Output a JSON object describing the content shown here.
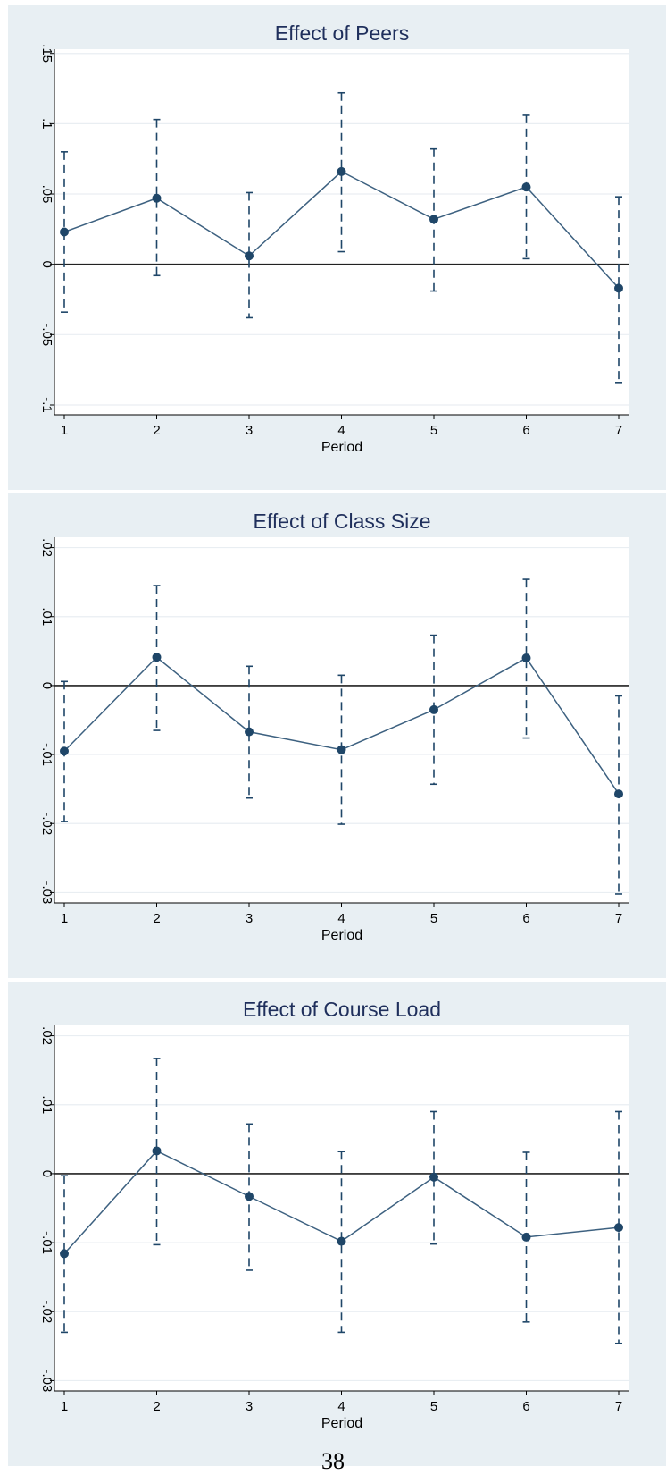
{
  "page_number": "38",
  "chart_data": [
    {
      "type": "line",
      "title": "Effect of Peers",
      "xlabel": "Period",
      "ylabel": "",
      "x": [
        1,
        2,
        3,
        4,
        5,
        6,
        7
      ],
      "x_tick_labels": [
        "1",
        "2",
        "3",
        "4",
        "5",
        "6",
        "7"
      ],
      "y_ticks": [
        0.15,
        0.1,
        0.05,
        0,
        -0.05,
        -0.1
      ],
      "y_tick_labels": [
        ".15",
        ".1",
        ".05",
        "0",
        "-.05",
        "-.1"
      ],
      "ylim": [
        -0.107,
        0.153
      ],
      "reference_line": 0,
      "grid": true,
      "series": [
        {
          "values": [
            0.023,
            0.047,
            0.006,
            0.066,
            0.032,
            0.055,
            -0.017
          ],
          "ci_upper": [
            0.08,
            0.103,
            0.051,
            0.122,
            0.082,
            0.106,
            0.048
          ],
          "ci_lower": [
            -0.034,
            -0.008,
            -0.038,
            0.009,
            -0.019,
            0.004,
            -0.084
          ]
        }
      ],
      "colors": {
        "line": "#3d6180",
        "marker": "#1f4668",
        "background": "#e8eff3",
        "plot": "#ffffff",
        "title": "#1f2f5c"
      }
    },
    {
      "type": "line",
      "title": "Effect of Class Size",
      "xlabel": "Period",
      "ylabel": "",
      "x": [
        1,
        2,
        3,
        4,
        5,
        6,
        7
      ],
      "x_tick_labels": [
        "1",
        "2",
        "3",
        "4",
        "5",
        "6",
        "7"
      ],
      "y_ticks": [
        0.02,
        0.01,
        0,
        -0.01,
        -0.02,
        -0.03
      ],
      "y_tick_labels": [
        ".02",
        ".01",
        "0",
        "-.01",
        "-.02",
        "-.03"
      ],
      "ylim": [
        -0.0315,
        0.0215
      ],
      "reference_line": 0,
      "grid": true,
      "series": [
        {
          "values": [
            -0.0095,
            0.0041,
            -0.0067,
            -0.0093,
            -0.0035,
            0.004,
            -0.0157
          ],
          "ci_upper": [
            0.0006,
            0.0145,
            0.0028,
            0.0015,
            0.0073,
            0.0154,
            -0.0015
          ],
          "ci_lower": [
            -0.0197,
            -0.0065,
            -0.0163,
            -0.0201,
            -0.0143,
            -0.0076,
            -0.0302
          ]
        }
      ],
      "colors": {
        "line": "#3d6180",
        "marker": "#1f4668",
        "background": "#e8eff3",
        "plot": "#ffffff",
        "title": "#1f2f5c"
      }
    },
    {
      "type": "line",
      "title": "Effect of Course Load",
      "xlabel": "Period",
      "ylabel": "",
      "x": [
        1,
        2,
        3,
        4,
        5,
        6,
        7
      ],
      "x_tick_labels": [
        "1",
        "2",
        "3",
        "4",
        "5",
        "6",
        "7"
      ],
      "y_ticks": [
        0.02,
        0.01,
        0,
        -0.01,
        -0.02,
        -0.03
      ],
      "y_tick_labels": [
        ".02",
        ".01",
        "0",
        "-.01",
        "-.02",
        "-.03"
      ],
      "ylim": [
        -0.0315,
        0.0215
      ],
      "reference_line": 0,
      "grid": true,
      "series": [
        {
          "values": [
            -0.0116,
            0.0033,
            -0.0033,
            -0.0098,
            -0.0005,
            -0.0092,
            -0.0078
          ],
          "ci_upper": [
            -0.0003,
            0.0167,
            0.0072,
            0.0032,
            0.009,
            0.0031,
            0.009
          ],
          "ci_lower": [
            -0.023,
            -0.0103,
            -0.014,
            -0.023,
            -0.0102,
            -0.0215,
            -0.0246
          ]
        }
      ],
      "colors": {
        "line": "#3d6180",
        "marker": "#1f4668",
        "background": "#e8eff3",
        "plot": "#ffffff",
        "title": "#1f2f5c"
      }
    }
  ]
}
